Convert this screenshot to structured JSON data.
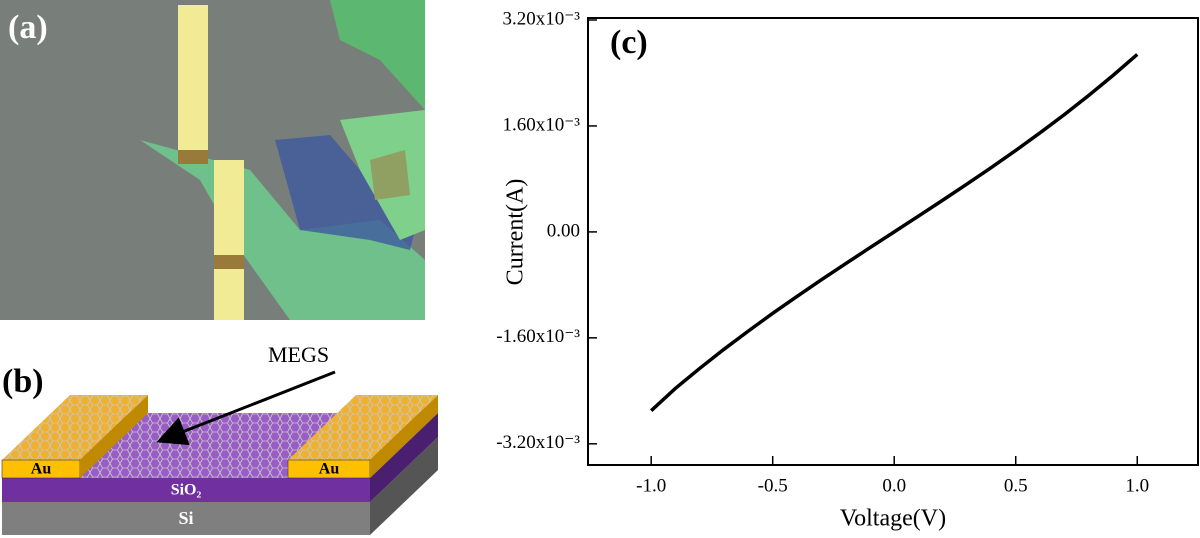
{
  "panels": {
    "a": {
      "label": "(a)"
    },
    "b": {
      "label": "(b)",
      "callout": "MEGS",
      "layers": [
        "Au",
        "Au",
        "SiO₂",
        "Si"
      ]
    }
  },
  "chart_data": {
    "type": "line",
    "panel_label": "(c)",
    "x_label": "Voltage(V)",
    "y_label": "Current(A)",
    "x": [
      -1.0,
      -0.9,
      -0.8,
      -0.7,
      -0.6,
      -0.5,
      -0.4,
      -0.3,
      -0.2,
      -0.1,
      0.0,
      0.1,
      0.2,
      0.3,
      0.4,
      0.5,
      0.6,
      0.7,
      0.8,
      0.9,
      1.0
    ],
    "values": [
      -0.0027,
      -0.002362,
      -0.00206,
      -0.001771,
      -0.001496,
      -0.00123,
      -0.000974,
      -0.000724,
      -0.00048,
      -0.000239,
      0.0,
      0.000239,
      0.00048,
      0.000724,
      0.000974,
      0.00123,
      0.001496,
      0.001771,
      0.00206,
      0.002362,
      0.00268
    ],
    "color": "#000000",
    "xlim": [
      -1.26,
      1.25
    ],
    "xticks": [
      {
        "value": -1.0,
        "label": "-1.0"
      },
      -0.5,
      {
        "value": 0.0,
        "label": "0.0"
      },
      0.5,
      {
        "value": 1.0,
        "label": "1.0"
      }
    ],
    "ylim": [
      -0.00352,
      0.00323
    ],
    "yticks": [
      {
        "value": -0.0032,
        "label": "-3.20x10⁻³"
      },
      {
        "value": -0.0016,
        "label": "-1.60x10⁻³"
      },
      {
        "value": 0,
        "label": "0.00"
      },
      {
        "value": 0.0016,
        "label": "1.60x10⁻³"
      },
      {
        "value": 0.0032,
        "label": "3.20x10⁻³"
      }
    ],
    "grid": false
  }
}
